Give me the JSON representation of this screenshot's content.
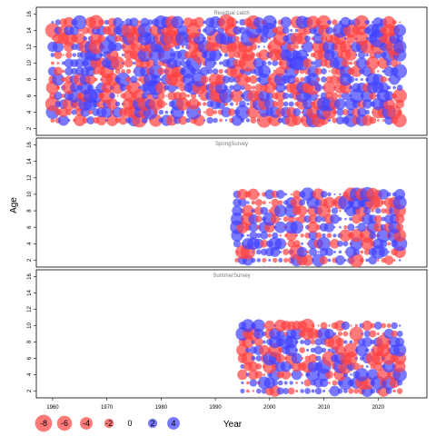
{
  "chart_data": {
    "type": "scatter",
    "subtype": "bubble-residuals",
    "xlabel": "Year",
    "ylabel": "Age",
    "xlim": [
      1957,
      2029
    ],
    "x_ticks": [
      1960,
      1970,
      1980,
      1990,
      2000,
      2010,
      2020
    ],
    "y_ticks": [
      2,
      4,
      6,
      8,
      10,
      12,
      14,
      16
    ],
    "colors": {
      "negative": "#ff4040",
      "positive": "#4040ff"
    },
    "panels": [
      {
        "title": "Residual catch",
        "years": [
          1960,
          2024
        ],
        "ages": [
          3,
          15
        ],
        "ylim": [
          1.5,
          16.5
        ],
        "seed": 11
      },
      {
        "title": "SpringSurvey",
        "years": [
          1994,
          2024
        ],
        "ages": [
          2,
          10
        ],
        "ylim": [
          1.5,
          16.5
        ],
        "seed": 23
      },
      {
        "title": "SummerSurvey",
        "years": [
          1995,
          2024
        ],
        "ages": [
          2,
          10
        ],
        "ylim": [
          1.5,
          16.5
        ],
        "seed": 37
      }
    ],
    "legend": {
      "entries": [
        {
          "label": "-8",
          "value": -8
        },
        {
          "label": "-6",
          "value": -6
        },
        {
          "label": "-4",
          "value": -4
        },
        {
          "label": "-2",
          "value": -2
        },
        {
          "label": "0",
          "value": 0
        },
        {
          "label": "2",
          "value": 2
        },
        {
          "label": "4",
          "value": 4
        }
      ]
    }
  }
}
